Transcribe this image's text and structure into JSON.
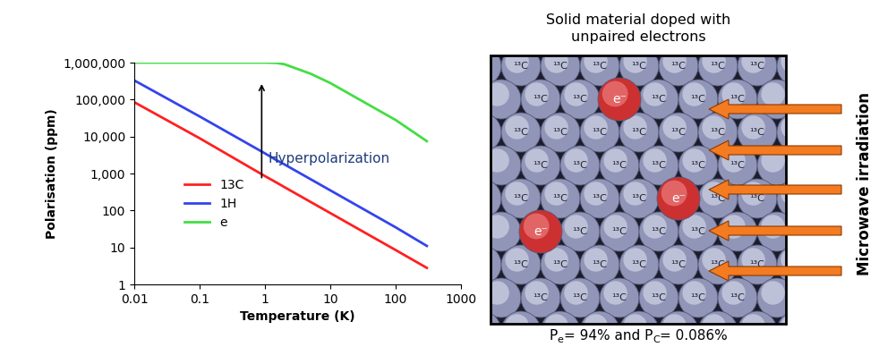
{
  "chart_data": {
    "type": "line",
    "x": [
      0.01,
      0.1,
      1,
      1.5,
      2,
      5,
      10,
      100,
      300
    ],
    "xlim": [
      0.01,
      1000
    ],
    "xticks": [
      0.01,
      0.1,
      1,
      10,
      100,
      1000
    ],
    "ylim": [
      1,
      1000000
    ],
    "yticks": [
      1,
      10,
      100,
      {
        "value": 1000,
        "label": "1,000"
      },
      {
        "value": 10000,
        "label": "10,000"
      },
      {
        "value": 100000,
        "label": "100,000"
      },
      {
        "value": 1000000,
        "label": "1,000,000"
      }
    ],
    "log": true,
    "grid": false,
    "xlabel": "Temperature (K)",
    "ylabel": "Polarisation (ppm)",
    "legend": "lower left",
    "series": [
      {
        "name": "13C",
        "color": "#ff2020",
        "values": [
          85000,
          9000,
          850,
          570,
          425,
          170,
          85,
          8.5,
          2.8
        ]
      },
      {
        "name": "1H",
        "color": "#3344ee",
        "values": [
          330000,
          35000,
          3500,
          2300,
          1750,
          700,
          350,
          35,
          11
        ]
      },
      {
        "name": "e",
        "color": "#44dd44",
        "values": [
          1000000,
          1000000,
          1000000,
          980000,
          900000,
          500000,
          280000,
          28000,
          7500
        ]
      }
    ],
    "annotations": [
      {
        "text": "Hyperpolarization"
      }
    ]
  },
  "diagram": {
    "title": [
      "Solid material doped with",
      "unpaired electrons"
    ],
    "atom_label": "¹³C",
    "electron_label": "e⁻",
    "side_label": "Microwave irradiation",
    "caption": [
      {
        "text": "P"
      },
      {
        "text": "e",
        "sub": true
      },
      {
        "text": "= 94% and P"
      },
      {
        "text": "C",
        "sub": true
      },
      {
        "text": "= 0.086%"
      }
    ]
  }
}
